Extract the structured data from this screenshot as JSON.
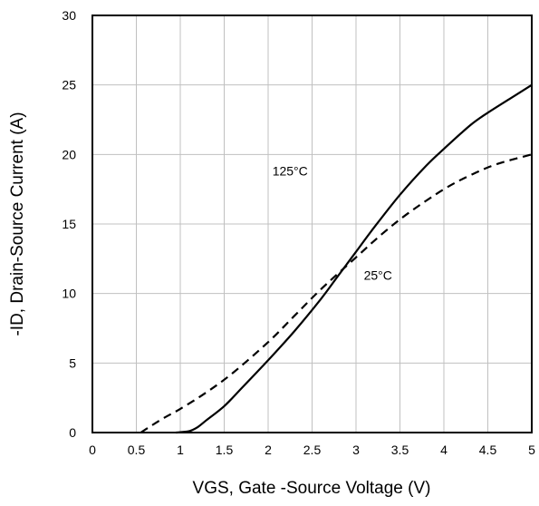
{
  "chart_data": {
    "type": "line",
    "title": "",
    "xlabel": "VGS, Gate -Source Voltage (V)",
    "ylabel": "-ID, Drain-Source Current (A)",
    "xlim": [
      0,
      5
    ],
    "ylim": [
      0,
      30
    ],
    "xticks": [
      0,
      0.5,
      1,
      1.5,
      2,
      2.5,
      3,
      3.5,
      4,
      4.5,
      5
    ],
    "yticks": [
      0,
      5,
      10,
      15,
      20,
      25,
      30
    ],
    "xtick_labels": [
      "0",
      "0.5",
      "1",
      "1.5",
      "2",
      "2.5",
      "3",
      "3.5",
      "4",
      "4.5",
      "5"
    ],
    "ytick_labels": [
      "0",
      "5",
      "10",
      "15",
      "20",
      "25",
      "30"
    ],
    "grid": true,
    "series": [
      {
        "style": "solid",
        "x": [
          0.95,
          1.1,
          1.2,
          1.3,
          1.5,
          1.7,
          2.0,
          2.3,
          2.6,
          2.8,
          3.0,
          3.2,
          3.5,
          3.8,
          4.0,
          4.3,
          4.5,
          4.8,
          5.0
        ],
        "y": [
          0,
          0.1,
          0.4,
          0.9,
          1.9,
          3.2,
          5.2,
          7.3,
          9.6,
          11.3,
          13.0,
          14.7,
          17.1,
          19.2,
          20.4,
          22.1,
          23.0,
          24.2,
          25.0
        ]
      },
      {
        "style": "dashed",
        "x": [
          0.55,
          0.8,
          1.0,
          1.3,
          1.6,
          2.0,
          2.3,
          2.6,
          3.0,
          3.3,
          3.6,
          4.0,
          4.3,
          4.6,
          5.0
        ],
        "y": [
          0,
          1.0,
          1.7,
          2.9,
          4.3,
          6.5,
          8.4,
          10.3,
          12.6,
          14.3,
          15.8,
          17.5,
          18.5,
          19.3,
          20.0
        ]
      }
    ],
    "annotations": [
      {
        "text": "125°C",
        "x": 2.25,
        "y": 18.5
      },
      {
        "text": "25°C",
        "x": 3.25,
        "y": 11.0
      }
    ]
  }
}
